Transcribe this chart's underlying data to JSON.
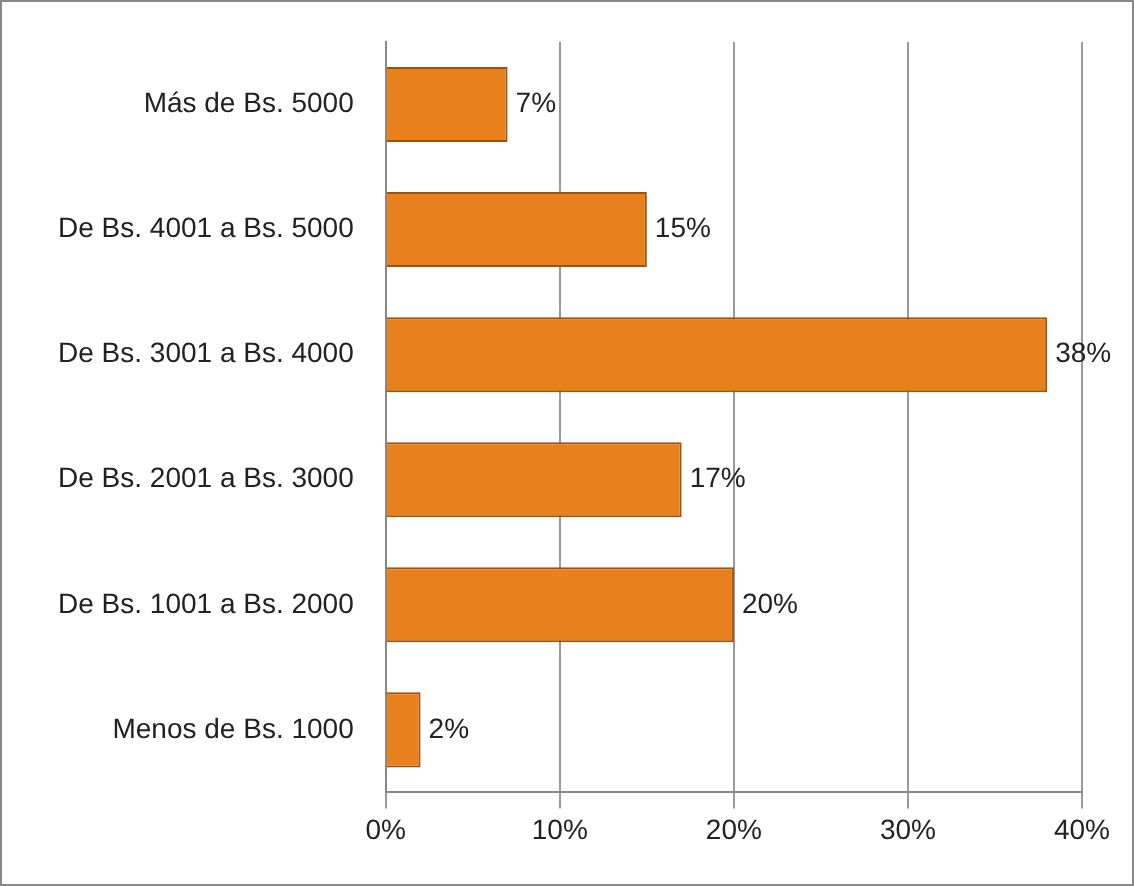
{
  "chart_data": {
    "type": "bar",
    "orientation": "horizontal",
    "categories": [
      "Más de Bs. 5000",
      "De Bs. 4001 a Bs. 5000",
      "De Bs. 3001 a Bs. 4000",
      "De Bs. 2001 a Bs. 3000",
      "De Bs. 1001 a Bs. 2000",
      "Menos de Bs. 1000"
    ],
    "values": [
      7,
      15,
      38,
      17,
      20,
      2
    ],
    "value_labels": [
      "7%",
      "15%",
      "38%",
      "17%",
      "20%",
      "2%"
    ],
    "color": "#e8801e",
    "xlim": [
      0,
      40
    ],
    "xticks": [
      {
        "value": 0,
        "label": "0%"
      },
      {
        "value": 10,
        "label": "10%"
      },
      {
        "value": 20,
        "label": "20%"
      },
      {
        "value": 30,
        "label": "30%"
      },
      {
        "value": 40,
        "label": "40%"
      }
    ],
    "grid": "x",
    "legend": false
  }
}
